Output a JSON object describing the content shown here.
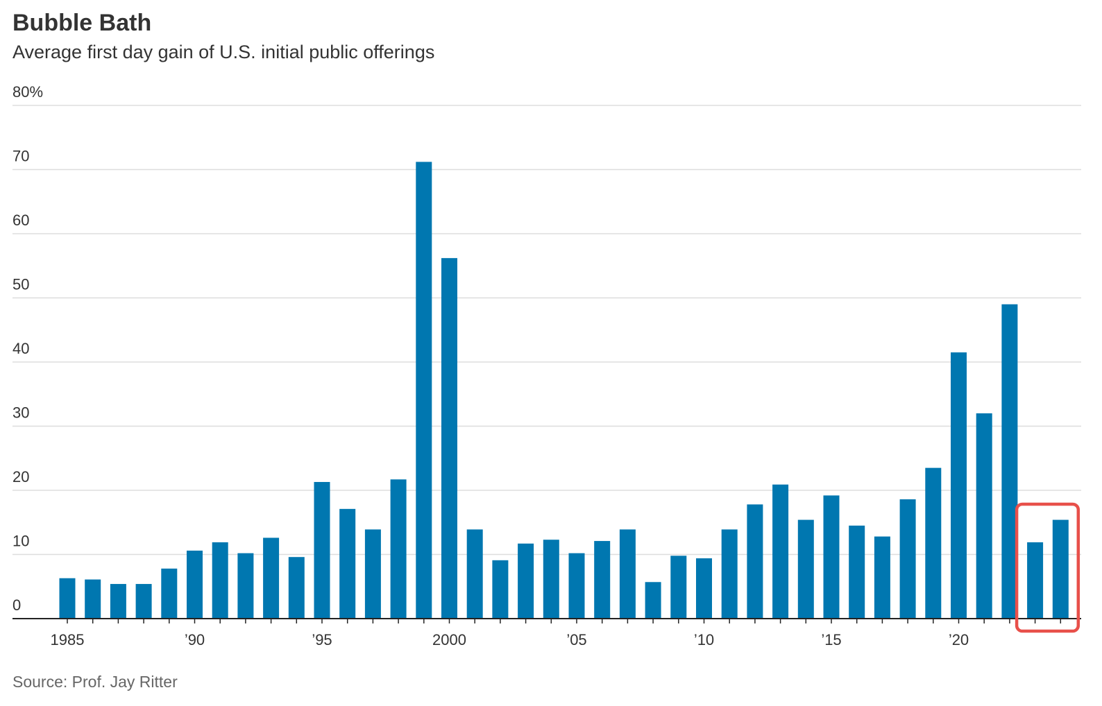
{
  "chart_data": {
    "type": "bar",
    "title": "Bubble Bath",
    "subtitle": "Average first day gain of U.S. initial public offerings",
    "source": "Source: Prof. Jay Ritter",
    "xlabel": "",
    "ylabel": "",
    "ylim": [
      0,
      80
    ],
    "yticks": [
      {
        "value": 0,
        "label": "0"
      },
      {
        "value": 10,
        "label": "10"
      },
      {
        "value": 20,
        "label": "20"
      },
      {
        "value": 30,
        "label": "30"
      },
      {
        "value": 40,
        "label": "40"
      },
      {
        "value": 50,
        "label": "50"
      },
      {
        "value": 60,
        "label": "60"
      },
      {
        "value": 70,
        "label": "70"
      },
      {
        "value": 80,
        "label": "80%"
      }
    ],
    "xticks": [
      {
        "year": 1985,
        "label": "1985"
      },
      {
        "year": 1990,
        "label": "’90"
      },
      {
        "year": 1995,
        "label": "’95"
      },
      {
        "year": 2000,
        "label": "2000"
      },
      {
        "year": 2005,
        "label": "’05"
      },
      {
        "year": 2010,
        "label": "’10"
      },
      {
        "year": 2015,
        "label": "’15"
      },
      {
        "year": 2020,
        "label": "’20"
      }
    ],
    "grid": true,
    "bar_color": "#0077b0",
    "highlight_color": "#e8504a",
    "highlight_years": [
      2023,
      2024
    ],
    "categories": [
      1985,
      1986,
      1987,
      1988,
      1989,
      1990,
      1991,
      1992,
      1993,
      1994,
      1995,
      1996,
      1997,
      1998,
      1999,
      2000,
      2001,
      2002,
      2003,
      2004,
      2005,
      2006,
      2007,
      2008,
      2009,
      2010,
      2011,
      2012,
      2013,
      2014,
      2015,
      2016,
      2017,
      2018,
      2019,
      2020,
      2021,
      2022,
      2023,
      2024
    ],
    "values": [
      6.3,
      6.1,
      5.4,
      5.4,
      7.8,
      10.6,
      11.9,
      10.2,
      12.6,
      9.6,
      21.3,
      17.1,
      13.9,
      21.7,
      71.2,
      56.2,
      13.9,
      9.1,
      11.7,
      12.3,
      10.2,
      12.1,
      13.9,
      5.7,
      9.8,
      9.4,
      13.9,
      17.8,
      20.9,
      15.4,
      19.2,
      14.5,
      12.8,
      18.6,
      23.5,
      41.5,
      32.0,
      49.0,
      11.9,
      15.4
    ]
  }
}
